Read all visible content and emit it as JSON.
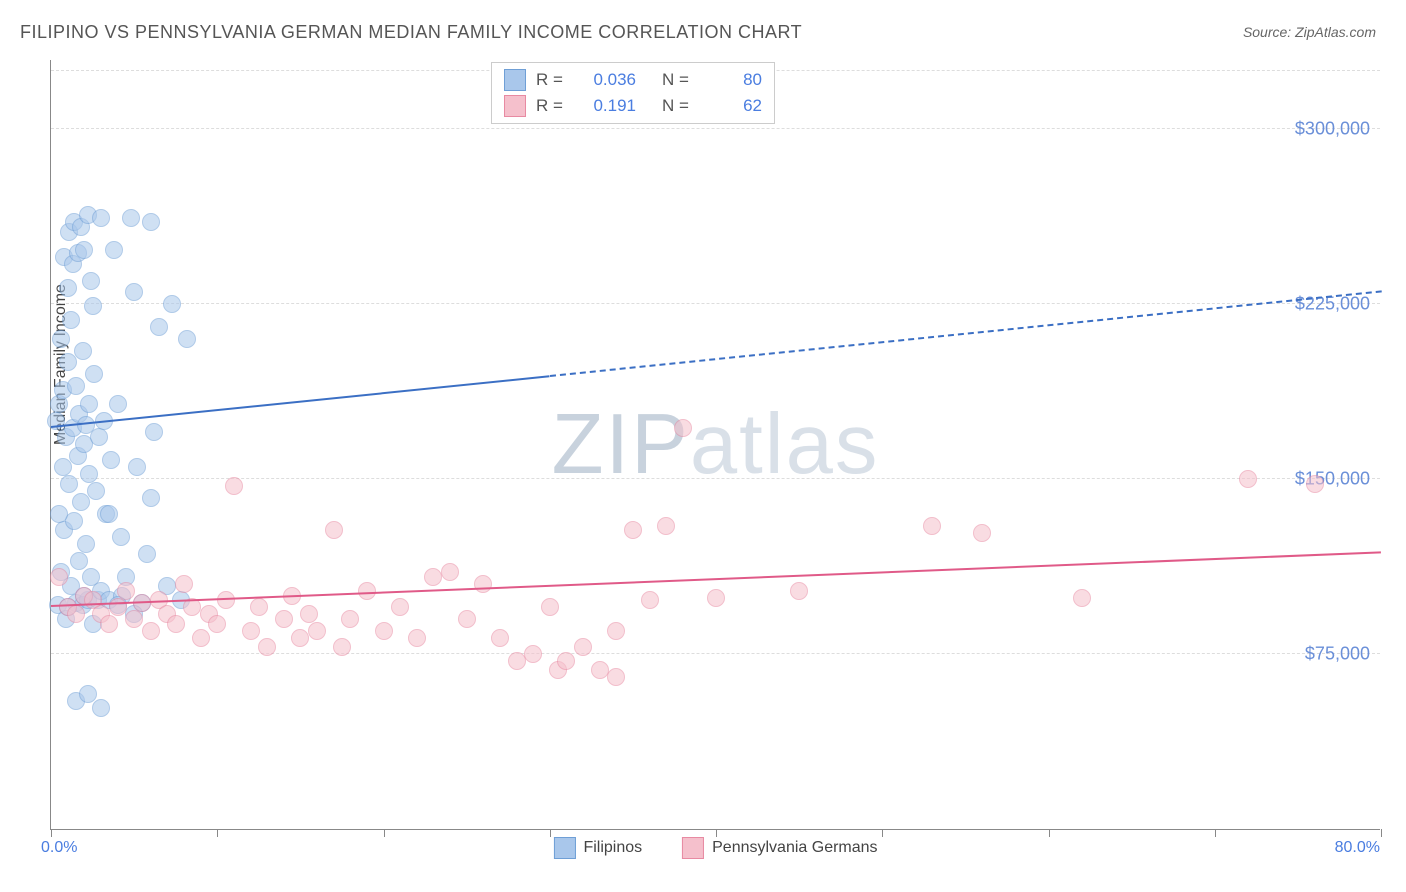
{
  "title": "FILIPINO VS PENNSYLVANIA GERMAN MEDIAN FAMILY INCOME CORRELATION CHART",
  "source": "Source: ZipAtlas.com",
  "watermark_pre": "ZIP",
  "watermark_post": "atlas",
  "ylabel": "Median Family Income",
  "chart": {
    "type": "scatter",
    "xlim": [
      0,
      80
    ],
    "ylim": [
      0,
      330000
    ],
    "x_ticks": [
      0,
      10,
      20,
      30,
      40,
      50,
      60,
      70,
      80
    ],
    "x_min_label": "0.0%",
    "x_max_label": "80.0%",
    "y_gridlines": [
      {
        "value": 75000,
        "label": "$75,000"
      },
      {
        "value": 150000,
        "label": "$150,000"
      },
      {
        "value": 225000,
        "label": "$225,000"
      },
      {
        "value": 300000,
        "label": "$300,000"
      },
      {
        "value": 325000,
        "label": ""
      }
    ],
    "background_color": "#ffffff",
    "grid_color": "#dddddd",
    "series": [
      {
        "name": "Filipinos",
        "color_fill": "#a9c7eb",
        "color_stroke": "#6f9fd6",
        "marker_radius": 9,
        "marker_opacity": 0.55,
        "r_value": "0.036",
        "n_value": "80",
        "trend": {
          "x1": 0,
          "y1": 172000,
          "x2_solid": 30,
          "x2": 80,
          "y2": 230000,
          "line_color": "#3b6fc4",
          "width": 2.2
        },
        "points": [
          [
            0.3,
            175000
          ],
          [
            0.4,
            96000
          ],
          [
            0.5,
            182000
          ],
          [
            0.6,
            210000
          ],
          [
            0.6,
            110000
          ],
          [
            0.7,
            155000
          ],
          [
            0.7,
            188000
          ],
          [
            0.8,
            245000
          ],
          [
            0.8,
            128000
          ],
          [
            0.9,
            168000
          ],
          [
            0.9,
            90000
          ],
          [
            1.0,
            200000
          ],
          [
            1.0,
            232000
          ],
          [
            1.1,
            148000
          ],
          [
            1.1,
            256000
          ],
          [
            1.2,
            104000
          ],
          [
            1.2,
            218000
          ],
          [
            1.3,
            172000
          ],
          [
            1.3,
            242000
          ],
          [
            1.4,
            260000
          ],
          [
            1.4,
            132000
          ],
          [
            1.5,
            97000
          ],
          [
            1.5,
            190000
          ],
          [
            1.6,
            247000
          ],
          [
            1.6,
            160000
          ],
          [
            1.7,
            178000
          ],
          [
            1.7,
            115000
          ],
          [
            1.8,
            258000
          ],
          [
            1.8,
            140000
          ],
          [
            1.9,
            96000
          ],
          [
            1.9,
            205000
          ],
          [
            2.0,
            165000
          ],
          [
            2.0,
            248000
          ],
          [
            2.1,
            173000
          ],
          [
            2.1,
            122000
          ],
          [
            2.2,
            263000
          ],
          [
            2.2,
            98000
          ],
          [
            2.3,
            152000
          ],
          [
            2.3,
            182000
          ],
          [
            2.4,
            235000
          ],
          [
            2.4,
            108000
          ],
          [
            2.5,
            224000
          ],
          [
            2.5,
            88000
          ],
          [
            2.6,
            195000
          ],
          [
            2.7,
            145000
          ],
          [
            2.8,
            98000
          ],
          [
            2.9,
            168000
          ],
          [
            3.0,
            262000
          ],
          [
            3.0,
            102000
          ],
          [
            3.2,
            175000
          ],
          [
            3.3,
            135000
          ],
          [
            3.5,
            98000
          ],
          [
            3.6,
            158000
          ],
          [
            3.8,
            248000
          ],
          [
            4.0,
            182000
          ],
          [
            4.2,
            125000
          ],
          [
            4.3,
            100000
          ],
          [
            4.5,
            108000
          ],
          [
            4.8,
            262000
          ],
          [
            5.0,
            230000
          ],
          [
            5.2,
            155000
          ],
          [
            5.5,
            97000
          ],
          [
            5.8,
            118000
          ],
          [
            6.0,
            260000
          ],
          [
            6.2,
            170000
          ],
          [
            6.5,
            215000
          ],
          [
            7.0,
            104000
          ],
          [
            7.3,
            225000
          ],
          [
            7.8,
            98000
          ],
          [
            8.2,
            210000
          ],
          [
            1.5,
            55000
          ],
          [
            2.2,
            58000
          ],
          [
            3.0,
            52000
          ],
          [
            6.0,
            142000
          ],
          [
            4.0,
            96000
          ],
          [
            5.0,
            92000
          ],
          [
            3.5,
            135000
          ],
          [
            2.0,
            100000
          ],
          [
            1.0,
            95000
          ],
          [
            0.5,
            135000
          ]
        ]
      },
      {
        "name": "Pennsylvania Germans",
        "color_fill": "#f5c0cc",
        "color_stroke": "#e88aa2",
        "marker_radius": 9,
        "marker_opacity": 0.55,
        "r_value": "0.191",
        "n_value": "62",
        "trend": {
          "x1": 0,
          "y1": 95000,
          "x2_solid": 80,
          "x2": 80,
          "y2": 118000,
          "line_color": "#e05a88",
          "width": 2
        },
        "points": [
          [
            0.5,
            108000
          ],
          [
            1.0,
            95000
          ],
          [
            1.5,
            92000
          ],
          [
            2.0,
            100000
          ],
          [
            2.5,
            98000
          ],
          [
            3.0,
            92000
          ],
          [
            3.5,
            88000
          ],
          [
            4.0,
            95000
          ],
          [
            4.5,
            102000
          ],
          [
            5.0,
            90000
          ],
          [
            5.5,
            97000
          ],
          [
            6.0,
            85000
          ],
          [
            6.5,
            98000
          ],
          [
            7.0,
            92000
          ],
          [
            7.5,
            88000
          ],
          [
            8.0,
            105000
          ],
          [
            8.5,
            95000
          ],
          [
            9.0,
            82000
          ],
          [
            9.5,
            92000
          ],
          [
            10.0,
            88000
          ],
          [
            10.5,
            98000
          ],
          [
            11.0,
            147000
          ],
          [
            12.0,
            85000
          ],
          [
            12.5,
            95000
          ],
          [
            13.0,
            78000
          ],
          [
            14.0,
            90000
          ],
          [
            14.5,
            100000
          ],
          [
            15.0,
            82000
          ],
          [
            15.5,
            92000
          ],
          [
            16.0,
            85000
          ],
          [
            17.0,
            128000
          ],
          [
            17.5,
            78000
          ],
          [
            18.0,
            90000
          ],
          [
            19.0,
            102000
          ],
          [
            20.0,
            85000
          ],
          [
            21.0,
            95000
          ],
          [
            22.0,
            82000
          ],
          [
            23.0,
            108000
          ],
          [
            24.0,
            110000
          ],
          [
            25.0,
            90000
          ],
          [
            26.0,
            105000
          ],
          [
            27.0,
            82000
          ],
          [
            28.0,
            72000
          ],
          [
            29.0,
            75000
          ],
          [
            30.0,
            95000
          ],
          [
            30.5,
            68000
          ],
          [
            31.0,
            72000
          ],
          [
            32.0,
            78000
          ],
          [
            33.0,
            68000
          ],
          [
            34.0,
            65000
          ],
          [
            35.0,
            128000
          ],
          [
            36.0,
            98000
          ],
          [
            37.0,
            130000
          ],
          [
            38.0,
            172000
          ],
          [
            40.0,
            99000
          ],
          [
            45.0,
            102000
          ],
          [
            53.0,
            130000
          ],
          [
            56.0,
            127000
          ],
          [
            62.0,
            99000
          ],
          [
            72.0,
            150000
          ],
          [
            76.0,
            148000
          ],
          [
            34.0,
            85000
          ]
        ]
      }
    ]
  },
  "legend_bottom": [
    {
      "label": "Filipinos",
      "fill": "#a9c7eb",
      "stroke": "#6f9fd6"
    },
    {
      "label": "Pennsylvania Germans",
      "fill": "#f5c0cc",
      "stroke": "#e88aa2"
    }
  ]
}
